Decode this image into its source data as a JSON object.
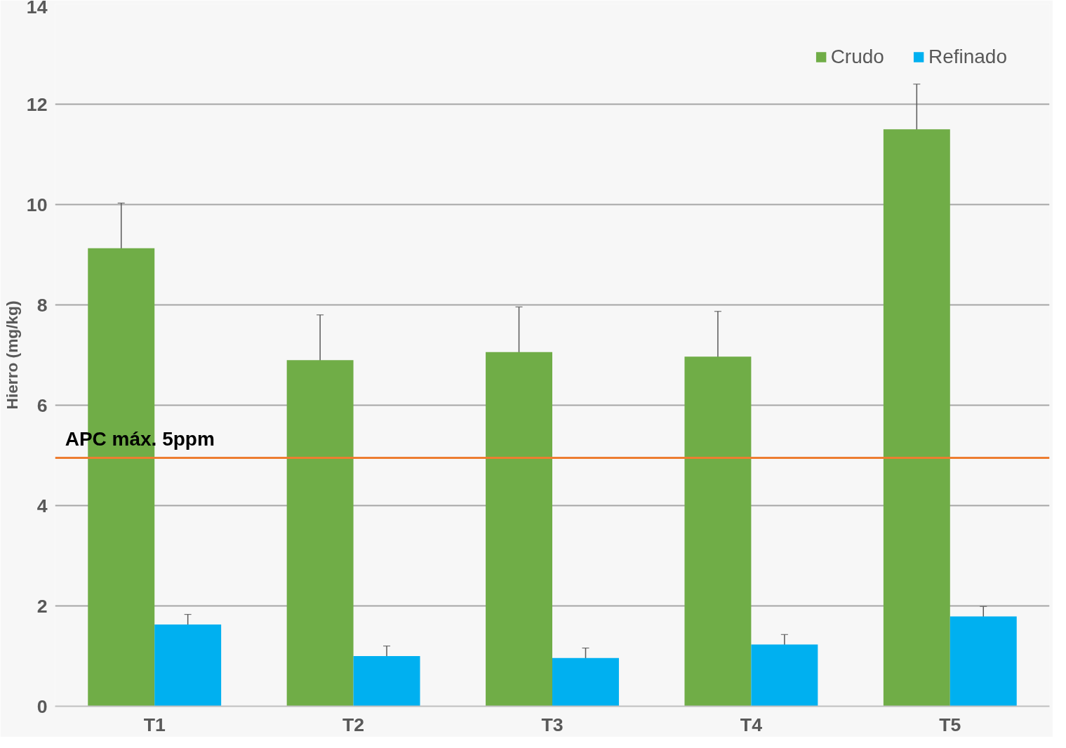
{
  "chart_data": {
    "type": "bar",
    "ylabel": "Hierro (mg/kg)",
    "categories": [
      "T1",
      "T2",
      "T3",
      "T4",
      "T5"
    ],
    "series": [
      {
        "name": "Crudo",
        "color": "#70ad47",
        "values": [
          9.13,
          6.9,
          7.06,
          6.97,
          11.5
        ],
        "errors": [
          0.9,
          0.9,
          0.9,
          0.9,
          0.9
        ]
      },
      {
        "name": "Refinado",
        "color": "#00b0f0",
        "values": [
          1.63,
          1.0,
          0.96,
          1.23,
          1.79
        ],
        "errors": [
          0.2,
          0.2,
          0.2,
          0.2,
          0.2
        ]
      }
    ],
    "ylim": [
      0,
      14
    ],
    "yticks": [
      0,
      2,
      4,
      6,
      8,
      10,
      12,
      14
    ],
    "grid": "y",
    "legend": "top right",
    "ref_lines": [
      {
        "axis": "y",
        "value": 4.95,
        "label": "APC máx. 5ppm",
        "color": "#ed7d31"
      }
    ]
  }
}
